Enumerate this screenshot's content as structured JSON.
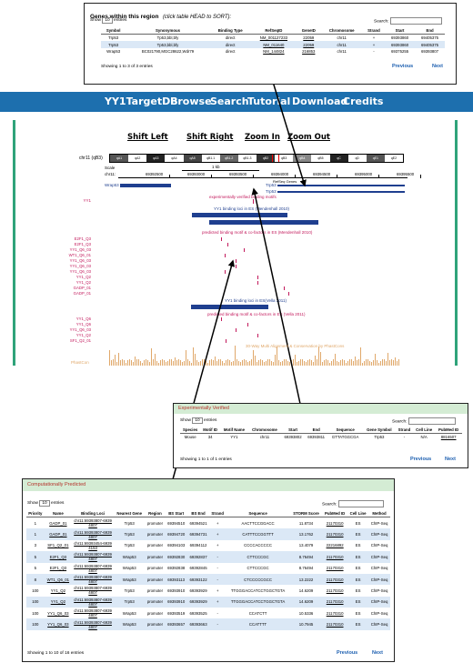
{
  "genes_panel": {
    "title": "Genes within this region",
    "hint": "(click table HEAD to SORT):",
    "show": "Show",
    "entries_select": "10",
    "entries": "entries",
    "search_label": "Search:",
    "headers": [
      "Symbol",
      "Synonymous",
      "Binding Type",
      "RefSeqID",
      "GeneID",
      "Chromosome",
      "Strand",
      "Start",
      "End"
    ],
    "rows": [
      [
        "Trp53",
        "Tp53,bbl,bfy",
        "direct",
        "NM_001127233",
        "22059",
        "chr11",
        "+",
        "69393860",
        "69405375"
      ],
      [
        "Trp53",
        "Tp53,bbl,bfy",
        "direct",
        "NM_011640",
        "22059",
        "chr11",
        "+",
        "69393860",
        "69405375"
      ],
      [
        "Wrap53",
        "BC021790,MGC28622,Wdr79",
        "direct",
        "NM_144824",
        "216853",
        "chr11",
        "-",
        "69375255",
        "69393807"
      ]
    ],
    "info": "Showing 1 to 3 of 3 entries",
    "previous": "Previous",
    "next": "Next"
  },
  "nav": {
    "brand": "YY1TargetDB",
    "items": [
      "Browse",
      "Search",
      "Tutorial",
      "Download",
      "Credits"
    ]
  },
  "browser": {
    "controls": [
      "Shift Left",
      "Shift Right",
      "Zoom In",
      "Zoom Out"
    ],
    "chrom": "chr11 (qB3)",
    "bands": [
      "qA1",
      "qA2",
      "qA3",
      "qA4",
      "qA5",
      "qB1.1",
      "qB1.2",
      "qB1.3",
      "qB2",
      "qB3",
      "qB4",
      "qB5",
      "qC",
      "qD",
      "qE1",
      "qE2"
    ],
    "scale_label": "Scale",
    "scale_value": "1 kb",
    "chr_label": "chr11:",
    "coords": [
      "69392500",
      "69393000",
      "69393500",
      "69394000",
      "69394500",
      "69395000",
      "69395500"
    ],
    "refseq_label": "RefSeq Genes",
    "genes": [
      "Wrap53",
      "Trp53",
      "Trp53"
    ],
    "track_titles": [
      "experimentally verified binding motifs",
      "YY1 binding loci in ES (Mendenhall 2010)",
      "predicted binding motif & co-factors in ES (Mendenhall 2010)",
      "YY1 binding loci in ES(Vella 2011)",
      "predicted binding motif & co-factors in ES (Vella 2011)",
      "30-Way Multi Alignment & Conservation by PhastCons"
    ],
    "motif_labels_a": [
      "YY1"
    ],
    "motif_labels_b": [
      "E2F1_Q3",
      "E2F1_Q3",
      "YY1_Q6_03",
      "WT1_Q6_01",
      "YY1_Q6_03",
      "YY1_Q6_03",
      "YY1_Q6_03",
      "YY1_Q2",
      "YY1_Q2",
      "GADP_01",
      "GADP_01"
    ],
    "motif_labels_c": [
      "YY1_Q6",
      "YY1_Q6",
      "YY1_Q6_03",
      "YY1_Q2",
      "SF1_Q2_01"
    ],
    "phastcons_label": "PhastCon"
  },
  "exp_panel": {
    "title": "Experimentally Verified",
    "show": "Show",
    "entries_select": "10",
    "entries": "entries",
    "search_label": "Search:",
    "headers": [
      "Species",
      "Motif ID",
      "Motif Name",
      "Chromosome",
      "Start",
      "End",
      "Sequence",
      "Gene Symbol",
      "Strand",
      "Cell Line",
      "PubMed ID"
    ],
    "rows": [
      [
        "Mouse",
        "34",
        "YY1",
        "chr11",
        "69393802",
        "69393811",
        "GTTATGGCGA",
        "Trp53",
        "-",
        "N/A",
        "8816507"
      ]
    ],
    "info": "Showing 1 to 1 of 1 entries",
    "previous": "Previous",
    "next": "Next"
  },
  "comp_panel": {
    "title": "Computationally Predicted",
    "show": "Show",
    "entries_select": "10",
    "entries": "entries",
    "search_label": "Search:",
    "headers": [
      "Priority",
      "Name",
      "Binding Loci",
      "Nearest Gene",
      "Region",
      "BS Start",
      "BS End",
      "Strand",
      "Sequence",
      "STORM Score",
      "PubMed ID",
      "Cell Line",
      "Method"
    ],
    "rows": [
      [
        "1",
        "GADP_01",
        "chr11:69393807-69394807",
        "Trp53",
        "promoter",
        "69394510",
        "69394521",
        "+",
        "AACTTCCGGACC",
        "11.8734",
        "21170310",
        "ES",
        "ChIP-Seq"
      ],
      [
        "1",
        "GADP_01",
        "chr11:69393807-69394807",
        "Trp53",
        "promoter",
        "69394720",
        "69394731",
        "+",
        "CATTTCCGGTTT",
        "13.1762",
        "21170310",
        "ES",
        "ChIP-Seq"
      ],
      [
        "3",
        "SF1_Q2_01",
        "chr11:69393454-69394153",
        "Trp53",
        "promoter",
        "69394103",
        "69394112",
        "+",
        "CCCCACCCCC",
        "13.4079",
        "22216892",
        "ES",
        "ChIP-Seq"
      ],
      [
        "5",
        "E2F1_Q3",
        "chr11:69393807-69394807",
        "Wrap53",
        "promoter",
        "69392830",
        "69392837",
        "-",
        "CTTCCCGC",
        "8.76494",
        "21170310",
        "ES",
        "ChIP-Seq"
      ],
      [
        "5",
        "E2F1_Q3",
        "chr11:69393807-69394807",
        "Wrap53",
        "promoter",
        "69392838",
        "69392845",
        "-",
        "CTTCCCGC",
        "8.76494",
        "21170310",
        "ES",
        "ChIP-Seq"
      ],
      [
        "8",
        "WT1_Q6_01",
        "chr11:69393807-69394807",
        "Wrap53",
        "promoter",
        "69393113",
        "69393122",
        "-",
        "CTCCCCCGCC",
        "13.2222",
        "21170310",
        "ES",
        "ChIP-Seq"
      ],
      [
        "100",
        "YY1_Q2",
        "chr11:69393807-69394807",
        "Trp53",
        "promoter",
        "69393910",
        "69393929",
        "+",
        "TTGGGACCATCCTGGCTGTA",
        "14.6209",
        "21170310",
        "ES",
        "ChIP-Seq"
      ],
      [
        "100",
        "YY1_Q2",
        "chr11:69393807-69394807",
        "Trp53",
        "promoter",
        "69393910",
        "69393929",
        "+",
        "TTGGGACCATCCTGGCTGTA",
        "14.6209",
        "21170310",
        "ES",
        "ChIP-Seq"
      ],
      [
        "100",
        "YY1_Q6_03",
        "chr11:69393807-69394807",
        "Wrap53",
        "promoter",
        "69393519",
        "69393525",
        "-",
        "CCATCTT",
        "10.5336",
        "21170310",
        "ES",
        "ChIP-Seq"
      ],
      [
        "100",
        "YY1_Q6_03",
        "chr11:69393807-69394807",
        "Wrap53",
        "promoter",
        "69393657",
        "69393663",
        "-",
        "CCATTTT",
        "10.7945",
        "21170310",
        "ES",
        "ChIP-Seq"
      ]
    ],
    "info": "Showing 1 to 10 of 16 entries",
    "previous": "Previous",
    "next": "Next"
  }
}
